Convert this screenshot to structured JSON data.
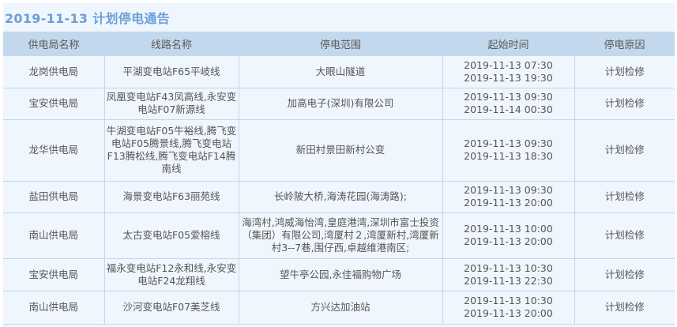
{
  "title": "2019-11-13  计划停电通告",
  "headers": [
    "供电局名称",
    "线路名称",
    "停电范围",
    "起始时间",
    "停电原因"
  ],
  "rows": [
    {
      "bureau": "龙岗供电局",
      "line": "平湖变电站F65平岐线",
      "area": "大眼山隧道",
      "start": "2019-11-13 07:30",
      "end": "2019-11-13 19:30",
      "reason": "计划检修"
    },
    {
      "bureau": "宝安供电局",
      "line": "凤凰变电站F43凤高线,永安变电站F07新源线",
      "area": "加高电子(深圳)有限公司",
      "start": "2019-11-13 09:30",
      "end": "2019-11-14 00:30",
      "reason": "计划检修"
    },
    {
      "bureau": "龙华供电局",
      "line": "牛湖变电站F05牛裕线,腾飞变电站F05腾景线,腾飞变电站F13腾松线,腾飞变电站F14腾南线",
      "area": "新田村景田新村公变",
      "start": "2019-11-13 09:30",
      "end": "2019-11-13 18:30",
      "reason": "计划检修"
    },
    {
      "bureau": "盐田供电局",
      "line": "海景变电站F63丽苑线",
      "area": "长岭陂大桥,海涛花园(海涛路);",
      "start": "2019-11-13 09:30",
      "end": "2019-11-13 20:00",
      "reason": "计划检修"
    },
    {
      "bureau": "南山供电局",
      "line": "太古变电站F05爱榕线",
      "area": "海湾村,鸿威海怡湾,皇庭港湾,深圳市富士投资（集团）有限公司,湾厦村２,湾厦新村,湾厦新村3--7巷,围仔西,卓越维港南区;",
      "start": "2019-11-13 10:00",
      "end": "2019-11-13 20:00",
      "reason": "计划检修"
    },
    {
      "bureau": "宝安供电局",
      "line": "福永变电站F12永和线,永安变电站F24龙翔线",
      "area": "望牛亭公园,永佳福购物广场",
      "start": "2019-11-13 10:30",
      "end": "2019-11-13 22:30",
      "reason": "计划检修"
    },
    {
      "bureau": "南山供电局",
      "line": "沙河变电站F07美芝线",
      "area": "方兴达加油站",
      "start": "2019-11-13 10:30",
      "end": "2019-11-13 20:00",
      "reason": "计划检修"
    }
  ]
}
